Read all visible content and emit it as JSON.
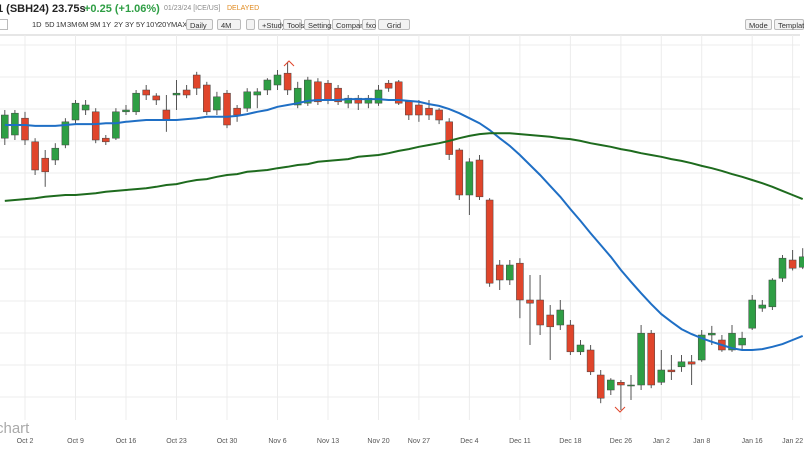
{
  "toolbar": {
    "symbol": "1 (SBH24) 23.75s",
    "change": "+0.25 (+1.06%)",
    "date": "01/23/24 [ICE/US]",
    "status": "DELAYED",
    "periods": [
      "1D",
      "5D",
      "1M",
      "3M",
      "6M",
      "9M",
      "1Y",
      "2Y",
      "3Y",
      "5Y",
      "10Y",
      "20Y",
      "MAX"
    ],
    "interval": "Daily",
    "range": "4M",
    "buttons": [
      "+Study",
      "Tools",
      "Settings",
      "Compare",
      "fxo",
      "Grid"
    ],
    "right_buttons": [
      "Mode",
      "Templat"
    ]
  },
  "watermark": "chart",
  "chart_data": {
    "type": "candlestick",
    "up_color": "#2e9e44",
    "down_color": "#e0452b",
    "ylim": [
      20.16,
      28.63
    ],
    "categories": [
      null,
      null,
      "Oct 2",
      null,
      null,
      null,
      null,
      "Oct 9",
      null,
      null,
      null,
      null,
      "Oct 16",
      null,
      null,
      null,
      null,
      "Oct 23",
      null,
      null,
      null,
      null,
      "Oct 30",
      null,
      null,
      null,
      null,
      "Nov 6",
      null,
      null,
      null,
      null,
      "Nov 13",
      null,
      null,
      null,
      null,
      "Nov 20",
      null,
      null,
      null,
      "Nov 27",
      null,
      null,
      null,
      null,
      "Dec 4",
      null,
      null,
      null,
      null,
      "Dec 11",
      null,
      null,
      null,
      null,
      "Dec 18",
      null,
      null,
      null,
      null,
      "Dec 26",
      null,
      null,
      null,
      "Jan 2",
      null,
      null,
      null,
      "Jan 8",
      null,
      null,
      null,
      null,
      "Jan 16",
      null,
      null,
      null,
      "Jan 22",
      null
    ],
    "open": [
      26.36,
      26.43,
      26.8,
      26.28,
      25.92,
      25.88,
      26.21,
      26.76,
      26.98,
      26.94,
      26.36,
      26.36,
      26.94,
      26.94,
      27.42,
      27.29,
      26.98,
      27.31,
      27.42,
      27.75,
      27.53,
      26.98,
      27.35,
      27.02,
      27.02,
      27.31,
      27.42,
      27.53,
      27.79,
      27.09,
      27.13,
      27.6,
      27.57,
      27.46,
      27.13,
      27.24,
      27.13,
      27.13,
      27.57,
      27.6,
      27.16,
      27.09,
      27.02,
      26.98,
      26.72,
      26.1,
      25.11,
      25.88,
      25.0,
      23.57,
      23.24,
      23.61,
      22.8,
      22.8,
      22.47,
      22.25,
      22.25,
      21.66,
      21.7,
      21.15,
      20.82,
      20.99,
      20.93,
      20.93,
      22.07,
      20.99,
      21.26,
      21.33,
      21.44,
      21.48,
      22.03,
      21.92,
      21.7,
      21.81,
      22.18,
      22.62,
      22.65,
      23.28,
      23.68,
      23.52
    ],
    "high": [
      26.98,
      26.98,
      26.94,
      26.36,
      26.1,
      26.25,
      26.8,
      27.2,
      27.2,
      27.02,
      26.43,
      27.02,
      27.09,
      27.42,
      27.53,
      27.35,
      27.31,
      27.64,
      27.53,
      27.82,
      27.6,
      27.38,
      27.42,
      27.09,
      27.46,
      27.46,
      27.68,
      27.86,
      28.04,
      27.6,
      27.71,
      27.68,
      27.64,
      27.53,
      27.31,
      27.31,
      27.31,
      27.53,
      27.64,
      27.64,
      27.2,
      27.2,
      27.2,
      27.02,
      26.8,
      26.14,
      25.92,
      25.99,
      25.04,
      23.68,
      23.68,
      23.72,
      23.35,
      23.35,
      22.69,
      22.8,
      22.36,
      21.92,
      21.81,
      21.26,
      21.08,
      21.04,
      21.15,
      22.25,
      22.14,
      21.7,
      21.59,
      21.59,
      21.59,
      22.14,
      22.23,
      22.03,
      22.25,
      22.1,
      22.91,
      22.8,
      23.28,
      23.79,
      23.9,
      23.94
    ],
    "low": [
      26.21,
      26.32,
      26.21,
      25.55,
      25.29,
      25.77,
      26.14,
      26.67,
      26.87,
      26.25,
      26.21,
      26.32,
      26.87,
      26.87,
      27.2,
      27.09,
      26.5,
      26.98,
      27.24,
      27.31,
      26.87,
      26.87,
      26.58,
      26.72,
      26.94,
      27.02,
      27.31,
      27.42,
      27.31,
      27.02,
      27.07,
      27.09,
      27.11,
      27.09,
      27.02,
      26.98,
      27.02,
      27.07,
      27.38,
      27.09,
      26.76,
      26.72,
      26.76,
      26.67,
      25.88,
      25.0,
      24.67,
      25.0,
      23.09,
      23.02,
      23.13,
      22.4,
      21.81,
      22.03,
      21.48,
      22.14,
      21.59,
      21.59,
      21.15,
      20.53,
      20.71,
      20.38,
      20.6,
      20.82,
      20.86,
      20.93,
      21.04,
      21.22,
      20.93,
      21.44,
      21.81,
      21.66,
      21.66,
      21.7,
      22.14,
      22.54,
      22.58,
      23.2,
      23.45,
      23.48
    ],
    "close": [
      26.87,
      26.91,
      26.32,
      25.66,
      25.62,
      26.14,
      26.72,
      27.13,
      27.09,
      26.32,
      26.28,
      26.94,
      26.98,
      27.35,
      27.31,
      27.2,
      26.76,
      27.35,
      27.31,
      27.46,
      26.94,
      27.27,
      26.65,
      26.87,
      27.38,
      27.38,
      27.64,
      27.75,
      27.42,
      27.46,
      27.64,
      27.16,
      27.2,
      27.16,
      27.24,
      27.13,
      27.24,
      27.42,
      27.46,
      27.13,
      26.87,
      26.87,
      26.87,
      26.76,
      26.0,
      25.11,
      25.84,
      25.07,
      23.17,
      23.24,
      23.57,
      22.8,
      22.73,
      22.25,
      22.21,
      22.58,
      21.66,
      21.81,
      21.22,
      20.64,
      21.04,
      20.93,
      20.93,
      22.07,
      20.93,
      21.26,
      21.22,
      21.44,
      21.39,
      22.03,
      22.07,
      21.7,
      22.07,
      21.96,
      22.8,
      22.69,
      23.24,
      23.72,
      23.5,
      23.75
    ],
    "lines": [
      {
        "color": "#1f6fc5",
        "values": [
          26.65,
          26.65,
          26.65,
          26.63,
          26.63,
          26.63,
          26.65,
          26.67,
          26.67,
          26.67,
          26.69,
          26.69,
          26.72,
          26.74,
          26.76,
          26.76,
          26.76,
          26.76,
          26.78,
          26.8,
          26.83,
          26.83,
          26.83,
          26.85,
          26.89,
          26.94,
          26.98,
          27.05,
          27.09,
          27.13,
          27.18,
          27.2,
          27.2,
          27.2,
          27.22,
          27.22,
          27.22,
          27.22,
          27.2,
          27.2,
          27.18,
          27.16,
          27.11,
          27.07,
          27.0,
          26.91,
          26.8,
          26.69,
          26.54,
          26.36,
          26.19,
          25.99,
          25.77,
          25.55,
          25.31,
          25.07,
          24.8,
          24.54,
          24.27,
          24.01,
          23.75,
          23.46,
          23.2,
          22.95,
          22.71,
          22.49,
          22.32,
          22.16,
          22.05,
          21.96,
          21.88,
          21.81,
          21.74,
          21.7,
          21.7,
          21.72,
          21.77,
          21.83,
          21.92,
          22.01
        ]
      },
      {
        "color": "#1e6b1e",
        "values": [
          24.98,
          25.0,
          25.02,
          25.04,
          25.07,
          25.09,
          25.11,
          25.11,
          25.13,
          25.15,
          25.18,
          25.2,
          25.22,
          25.24,
          25.26,
          25.29,
          25.33,
          25.35,
          25.4,
          25.44,
          25.46,
          25.51,
          25.55,
          25.57,
          25.62,
          25.64,
          25.66,
          25.7,
          25.73,
          25.77,
          25.79,
          25.84,
          25.86,
          25.88,
          25.9,
          25.95,
          25.97,
          25.99,
          26.03,
          26.08,
          26.12,
          26.17,
          26.21,
          26.25,
          26.3,
          26.36,
          26.41,
          26.45,
          26.47,
          26.47,
          26.47,
          26.45,
          26.43,
          26.41,
          26.39,
          26.36,
          26.34,
          26.3,
          26.25,
          26.21,
          26.17,
          26.12,
          26.08,
          26.03,
          25.99,
          25.95,
          25.9,
          25.86,
          25.81,
          25.75,
          25.7,
          25.64,
          25.57,
          25.51,
          25.44,
          25.37,
          25.29,
          25.2,
          25.11,
          25.02
        ]
      }
    ]
  }
}
